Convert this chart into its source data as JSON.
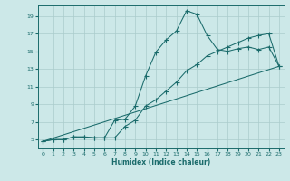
{
  "xlabel": "Humidex (Indice chaleur)",
  "background_color": "#cce8e8",
  "grid_color": "#aacccc",
  "line_color": "#1a6b6b",
  "xlim": [
    -0.5,
    23.5
  ],
  "ylim": [
    4.0,
    20.2
  ],
  "xticks": [
    0,
    1,
    2,
    3,
    4,
    5,
    6,
    7,
    8,
    9,
    10,
    11,
    12,
    13,
    14,
    15,
    16,
    17,
    18,
    19,
    20,
    21,
    22,
    23
  ],
  "yticks": [
    5,
    7,
    9,
    11,
    13,
    15,
    17,
    19
  ],
  "line1_x": [
    0,
    1,
    2,
    3,
    4,
    5,
    6,
    7,
    8,
    9,
    10,
    11,
    12,
    13,
    14,
    15,
    16,
    17,
    18,
    19,
    20,
    21,
    22,
    23
  ],
  "line1_y": [
    4.8,
    5.0,
    5.0,
    5.3,
    5.3,
    5.2,
    5.2,
    7.2,
    7.3,
    8.8,
    12.2,
    14.9,
    16.3,
    17.3,
    19.6,
    19.2,
    16.8,
    15.2,
    15.0,
    15.3,
    15.5,
    15.2,
    15.5,
    13.3
  ],
  "line2_x": [
    0,
    1,
    2,
    3,
    4,
    5,
    6,
    7,
    8,
    9,
    10,
    11,
    12,
    13,
    14,
    15,
    16,
    17,
    18,
    19,
    20,
    21,
    22,
    23
  ],
  "line2_y": [
    4.8,
    5.0,
    5.0,
    5.3,
    5.3,
    5.2,
    5.2,
    5.2,
    6.5,
    7.2,
    8.8,
    9.5,
    10.5,
    11.5,
    12.8,
    13.5,
    14.5,
    15.0,
    15.5,
    16.0,
    16.5,
    16.8,
    17.0,
    13.3
  ],
  "line3_x": [
    0,
    23
  ],
  "line3_y": [
    4.8,
    13.3
  ]
}
